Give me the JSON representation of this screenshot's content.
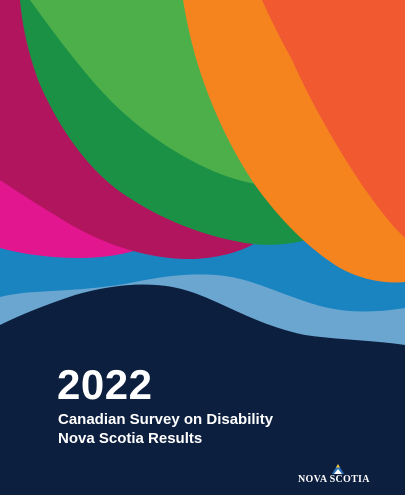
{
  "cover": {
    "year": "2022",
    "title_line1": "Canadian Survey on Disability",
    "title_line2": "Nova Scotia Results",
    "logo_text": "NOVA SCOTIA"
  },
  "colors": {
    "navy": "#0d1f3f",
    "light_blue": "#6aa6cf",
    "blue": "#1a84c1",
    "pink": "#e2168f",
    "magenta": "#b1155e",
    "green": "#4daf4a",
    "dark_green": "#1b9146",
    "orange": "#f5841f",
    "red_orange": "#f15a30",
    "logo_blue": "#2b6fb6",
    "logo_yellow": "#f7c62f"
  }
}
